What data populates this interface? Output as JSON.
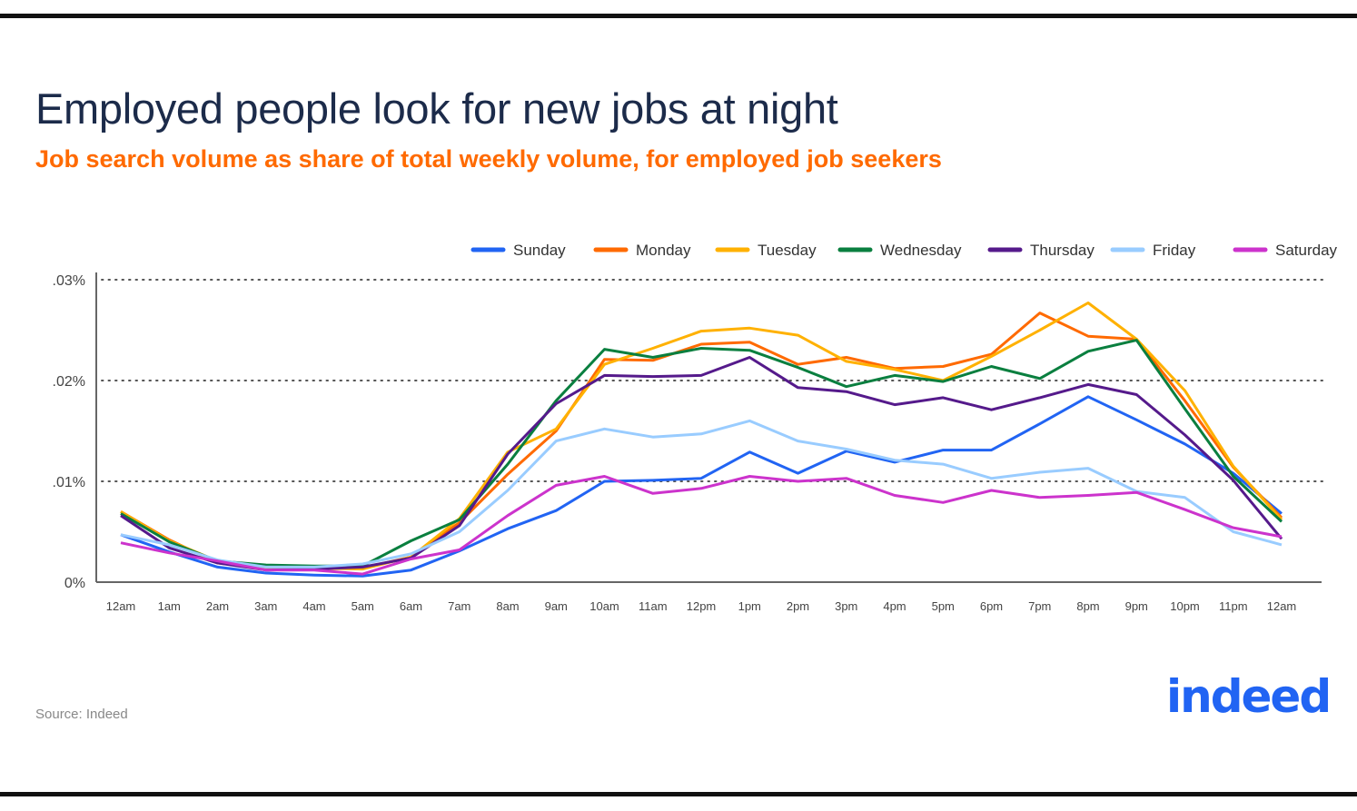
{
  "title": "Employed people look for new jobs at night",
  "subtitle": "Job search volume as share of total weekly volume, for employed job seekers",
  "source": "Source: Indeed",
  "logo_text": "indeed",
  "chart_data": {
    "type": "line",
    "title": "Employed people look for new jobs at night",
    "subtitle": "Job search volume as share of total weekly volume, for employed job seekers",
    "xlabel": "",
    "ylabel": "",
    "x": [
      "12am",
      "1am",
      "2am",
      "3am",
      "4am",
      "5am",
      "6am",
      "7am",
      "8am",
      "9am",
      "10am",
      "11am",
      "12pm",
      "1pm",
      "2pm",
      "3pm",
      "4pm",
      "5pm",
      "6pm",
      "7pm",
      "8pm",
      "9pm",
      "10pm",
      "11pm",
      "12am"
    ],
    "ylim": [
      0,
      0.03
    ],
    "yticks": [
      0,
      0.01,
      0.02,
      0.03
    ],
    "ytick_labels": [
      "0%",
      ".01%",
      ".02%",
      ".03%"
    ],
    "grid": true,
    "legend_position": "top",
    "series": [
      {
        "name": "Sunday",
        "color": "#2164f3",
        "values": [
          0.0047,
          0.003,
          0.0015,
          0.0009,
          0.0007,
          0.0006,
          0.0012,
          0.0031,
          0.0053,
          0.0071,
          0.01,
          0.0101,
          0.0103,
          0.0129,
          0.0108,
          0.013,
          0.0119,
          0.0131,
          0.0131,
          0.0157,
          0.0184,
          0.0161,
          0.0137,
          0.0108,
          0.0068
        ]
      },
      {
        "name": "Monday",
        "color": "#ff6a00",
        "values": [
          0.007,
          0.0042,
          0.0019,
          0.0013,
          0.0013,
          0.0014,
          0.0025,
          0.0059,
          0.0107,
          0.015,
          0.0221,
          0.022,
          0.0236,
          0.0238,
          0.0216,
          0.0223,
          0.0212,
          0.0214,
          0.0226,
          0.0267,
          0.0244,
          0.0241,
          0.018,
          0.0114,
          0.0064
        ]
      },
      {
        "name": "Tuesday",
        "color": "#ffb100",
        "values": [
          0.007,
          0.0041,
          0.0021,
          0.0014,
          0.0014,
          0.0013,
          0.0025,
          0.0063,
          0.0129,
          0.0152,
          0.0216,
          0.0232,
          0.0249,
          0.0252,
          0.0245,
          0.0219,
          0.0211,
          0.02,
          0.0224,
          0.025,
          0.0277,
          0.0241,
          0.019,
          0.0115,
          0.0062
        ]
      },
      {
        "name": "Wednesday",
        "color": "#0a7f3f",
        "values": [
          0.0068,
          0.004,
          0.0021,
          0.0017,
          0.0016,
          0.0016,
          0.0041,
          0.0062,
          0.0117,
          0.018,
          0.0231,
          0.0223,
          0.0232,
          0.023,
          0.0213,
          0.0194,
          0.0205,
          0.0199,
          0.0214,
          0.0202,
          0.0229,
          0.024,
          0.0172,
          0.0105,
          0.006
        ]
      },
      {
        "name": "Thursday",
        "color": "#551a8b",
        "values": [
          0.0066,
          0.0034,
          0.0019,
          0.0012,
          0.0013,
          0.0015,
          0.0024,
          0.0056,
          0.0127,
          0.0177,
          0.0205,
          0.0204,
          0.0205,
          0.0223,
          0.0193,
          0.0189,
          0.0176,
          0.0183,
          0.0171,
          0.0183,
          0.0196,
          0.0186,
          0.0146,
          0.0101,
          0.0043
        ]
      },
      {
        "name": "Friday",
        "color": "#99ccff",
        "values": [
          0.0047,
          0.0037,
          0.0022,
          0.0015,
          0.0015,
          0.0018,
          0.0028,
          0.005,
          0.0091,
          0.014,
          0.0152,
          0.0144,
          0.0147,
          0.016,
          0.014,
          0.0132,
          0.0121,
          0.0117,
          0.0103,
          0.0109,
          0.0113,
          0.009,
          0.0084,
          0.005,
          0.0037
        ]
      },
      {
        "name": "Saturday",
        "color": "#cc33cc",
        "values": [
          0.0039,
          0.0029,
          0.0021,
          0.0012,
          0.0012,
          0.0008,
          0.0023,
          0.0032,
          0.0066,
          0.0096,
          0.0105,
          0.0088,
          0.0093,
          0.0105,
          0.01,
          0.0103,
          0.0086,
          0.0079,
          0.0091,
          0.0084,
          0.0086,
          0.0089,
          0.0072,
          0.0054,
          0.0045
        ]
      }
    ]
  }
}
